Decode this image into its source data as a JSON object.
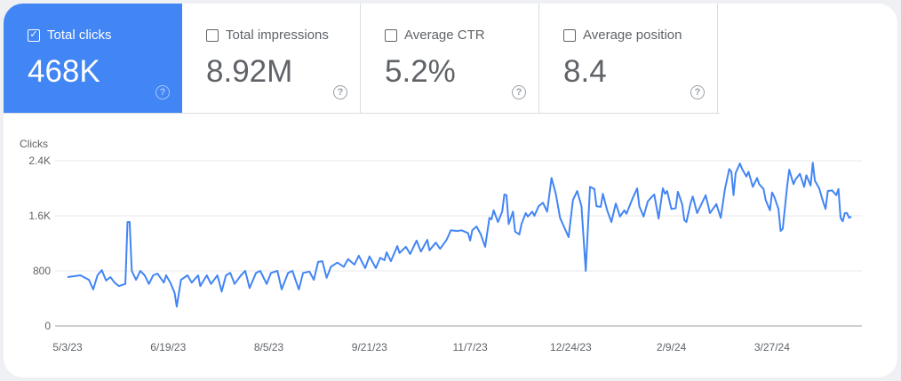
{
  "metrics": [
    {
      "label": "Total clicks",
      "value": "468K",
      "checked": true
    },
    {
      "label": "Total impressions",
      "value": "8.92M",
      "checked": false
    },
    {
      "label": "Average CTR",
      "value": "5.2%",
      "checked": false
    },
    {
      "label": "Average position",
      "value": "8.4",
      "checked": false
    }
  ],
  "help_glyph": "?",
  "check_glyph": "✓",
  "colors": {
    "accent": "#4285f4",
    "line": "#4285f4",
    "grid": "#e8eaed"
  },
  "chart_data": {
    "type": "line",
    "ylabel": "Clicks",
    "ylim": [
      0,
      2400
    ],
    "yticks": [
      {
        "v": 0,
        "label": "0"
      },
      {
        "v": 800,
        "label": "800"
      },
      {
        "v": 1600,
        "label": "1.6K"
      },
      {
        "v": 2400,
        "label": "2.4K"
      }
    ],
    "xlim": [
      0,
      366
    ],
    "xticks": [
      {
        "d": 0,
        "label": "5/3/23"
      },
      {
        "d": 47,
        "label": "6/19/23"
      },
      {
        "d": 94,
        "label": "8/5/23"
      },
      {
        "d": 141,
        "label": "9/21/23"
      },
      {
        "d": 188,
        "label": "11/7/23"
      },
      {
        "d": 235,
        "label": "12/24/23"
      },
      {
        "d": 282,
        "label": "2/9/24"
      },
      {
        "d": 329,
        "label": "3/27/24"
      }
    ],
    "x_unit": "days since 5/3/23",
    "series": [
      {
        "name": "Clicks",
        "x": [
          0,
          6,
          10,
          12,
          14,
          16,
          18,
          20,
          22,
          24,
          27,
          28,
          29,
          30,
          32,
          34,
          36,
          38,
          40,
          42,
          45,
          46,
          48,
          50,
          51,
          53,
          56,
          58,
          61,
          62,
          65,
          67,
          70,
          72,
          74,
          76,
          78,
          81,
          83,
          85,
          88,
          90,
          93,
          95,
          98,
          100,
          103,
          105,
          108,
          110,
          113,
          115,
          117,
          119,
          121,
          123,
          126,
          129,
          131,
          134,
          136,
          139,
          141,
          144,
          146,
          148,
          149,
          151,
          154,
          155,
          158,
          160,
          163,
          165,
          168,
          169,
          172,
          174,
          177,
          179,
          182,
          184,
          187,
          188,
          189,
          191,
          193,
          195,
          197,
          198,
          199,
          201,
          203,
          204,
          205,
          206,
          208,
          209,
          211,
          212,
          214,
          215,
          217,
          218,
          220,
          222,
          224,
          226,
          228,
          230,
          232,
          234,
          236,
          238,
          240,
          242,
          244,
          246,
          247,
          249,
          250,
          252,
          254,
          256,
          258,
          260,
          261,
          264,
          266,
          267,
          269,
          271,
          273,
          274,
          276,
          278,
          279,
          280,
          282,
          284,
          285,
          287,
          288,
          289,
          291,
          292,
          294,
          296,
          298,
          300,
          303,
          305,
          307,
          309,
          310,
          311,
          312,
          314,
          315,
          317,
          318,
          320,
          322,
          323,
          325,
          326,
          328,
          329,
          330,
          332,
          333,
          334,
          336,
          337,
          339,
          340,
          342,
          344,
          345,
          347,
          348,
          349,
          351,
          353,
          354,
          355,
          357,
          359,
          360,
          361,
          362,
          363,
          364,
          365,
          366
        ],
        "y": [
          710,
          735,
          670,
          530,
          735,
          810,
          660,
          710,
          630,
          580,
          610,
          1510,
          1510,
          800,
          670,
          800,
          735,
          610,
          735,
          760,
          630,
          735,
          630,
          480,
          280,
          670,
          735,
          630,
          735,
          580,
          735,
          610,
          735,
          500,
          735,
          770,
          610,
          735,
          800,
          550,
          770,
          800,
          610,
          770,
          800,
          530,
          770,
          800,
          530,
          770,
          790,
          670,
          930,
          940,
          700,
          860,
          920,
          860,
          970,
          890,
          1020,
          840,
          1010,
          840,
          990,
          955,
          1070,
          940,
          1160,
          1060,
          1150,
          1045,
          1240,
          1080,
          1250,
          1100,
          1210,
          1120,
          1250,
          1390,
          1380,
          1390,
          1350,
          1240,
          1390,
          1445,
          1330,
          1150,
          1570,
          1550,
          1680,
          1510,
          1660,
          1910,
          1900,
          1480,
          1660,
          1370,
          1330,
          1480,
          1640,
          1590,
          1660,
          1600,
          1740,
          1790,
          1660,
          2150,
          1920,
          1570,
          1430,
          1290,
          1830,
          1960,
          1740,
          800,
          2020,
          1990,
          1740,
          1730,
          1920,
          1680,
          1510,
          1780,
          1590,
          1680,
          1630,
          1860,
          2000,
          1740,
          1590,
          1810,
          1880,
          1910,
          1560,
          2000,
          1920,
          1960,
          1700,
          1710,
          1950,
          1770,
          1540,
          1510,
          1790,
          1880,
          1640,
          1770,
          1900,
          1640,
          1770,
          1570,
          1990,
          2280,
          2240,
          1900,
          2220,
          2360,
          2280,
          2170,
          2240,
          2020,
          2150,
          2060,
          1990,
          1830,
          1680,
          1940,
          1880,
          1700,
          1380,
          1410,
          2020,
          2270,
          2060,
          2130,
          2210,
          2020,
          2190,
          2040,
          2370,
          2110,
          2000,
          1790,
          1700,
          1960,
          1970,
          1900,
          1990,
          1570,
          1520,
          1640,
          1640,
          1570,
          1590
        ]
      }
    ]
  }
}
